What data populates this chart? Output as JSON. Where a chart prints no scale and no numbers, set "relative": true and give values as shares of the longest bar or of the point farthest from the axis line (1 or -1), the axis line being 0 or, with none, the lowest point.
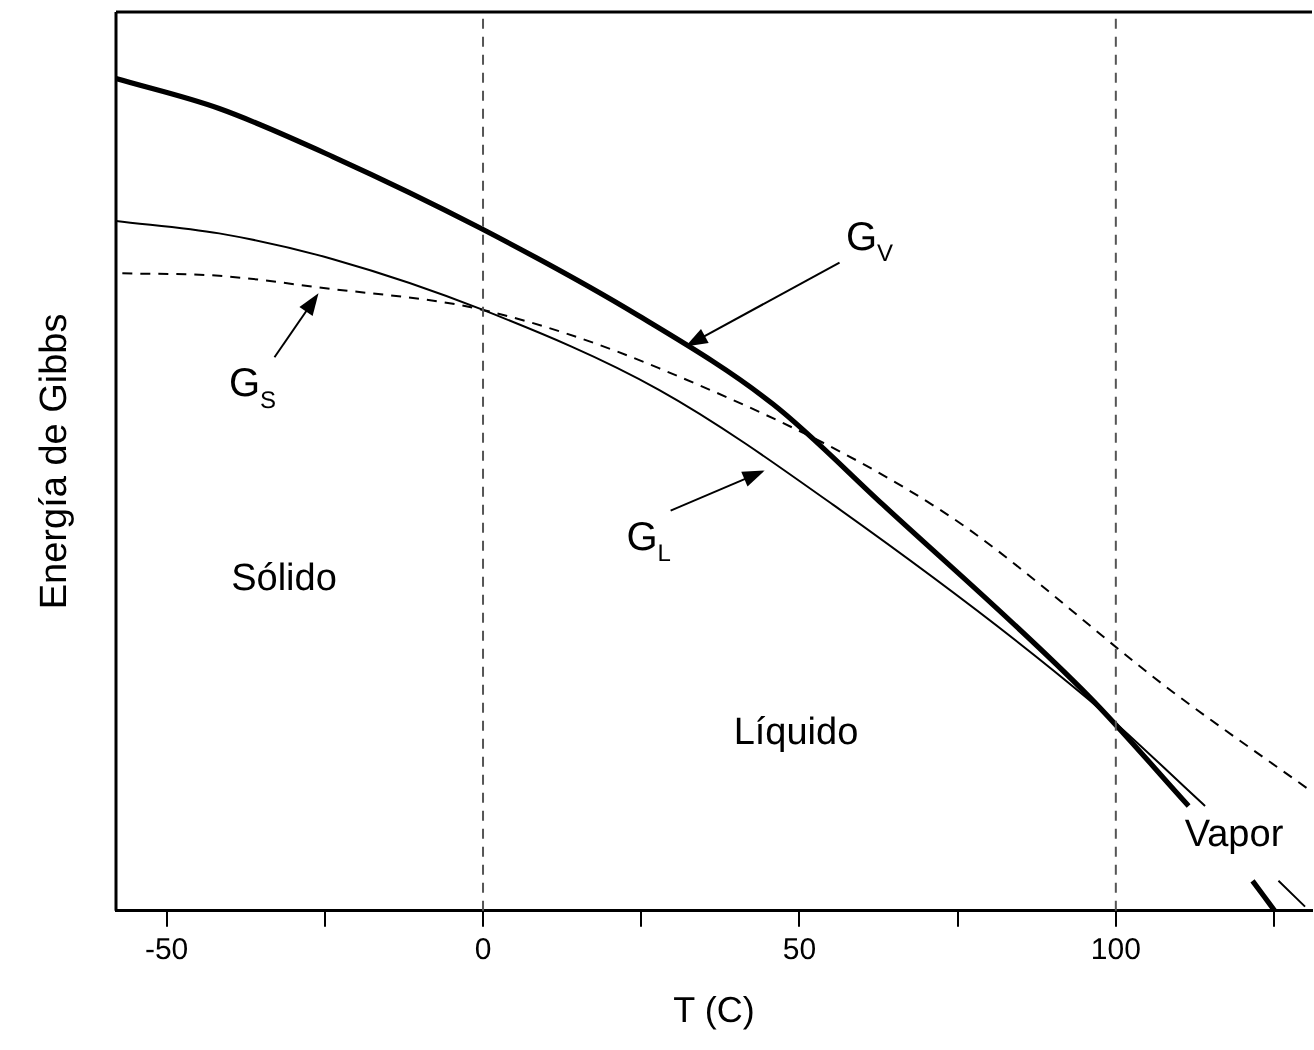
{
  "chart_data": {
    "type": "line",
    "xlabel": "T (C)",
    "ylabel": "Energía de Gibbs",
    "relative": true,
    "legend": false,
    "grid": false,
    "marker": "none",
    "xlim": [
      -58,
      131
    ],
    "xticks": [
      -50,
      {
        "value": -25,
        "label": null
      },
      0,
      {
        "value": 25,
        "label": null
      },
      50,
      {
        "value": 75,
        "label": null
      },
      100,
      {
        "value": 125,
        "label": null
      }
    ],
    "series": [
      {
        "color": "#000000",
        "line_style": "solid",
        "x": [
          -58,
          -41.7,
          -23.7,
          -0.6,
          24.6,
          45.8,
          63.2,
          95.7,
          111.5,
          null,
          121.6,
          125.1
        ],
        "values": [
          1,
          0.964,
          0.906,
          0.821,
          0.715,
          0.609,
          0.488,
          0.258,
          0.126,
          null,
          0.036,
          0
        ]
      },
      {
        "color": "#000000",
        "line_style": "solid",
        "x": [
          -58,
          -41.7,
          -23.7,
          0,
          27.8,
          55.3,
          95.7,
          114.1,
          null,
          125.7,
          129.9
        ],
        "values": [
          0.829,
          0.814,
          0.783,
          0.722,
          0.626,
          0.488,
          0.254,
          0.126,
          null,
          0.036,
          0.005
        ]
      },
      {
        "color": "#000000",
        "line_style": "dashed",
        "x": [
          -57,
          -41.7,
          -25.9,
          0,
          27.8,
          72,
          109,
          131
        ],
        "values": [
          0.766,
          0.763,
          0.749,
          0.722,
          0.652,
          0.483,
          0.263,
          0.143
        ]
      }
    ],
    "ref_lines": [
      {
        "axis": "x",
        "value": 0,
        "color": "#555555",
        "line_style": "dashed"
      },
      {
        "axis": "x",
        "value": 100,
        "color": "#555555",
        "line_style": "dashed"
      }
    ],
    "annotations": [
      {
        "text": "G$_{S}$",
        "x": -26,
        "y": 0.742
      },
      {
        "text": "G$_{V}$",
        "x": 32,
        "y": 0.678
      },
      {
        "text": "G$_{L}$",
        "x": 44.5,
        "y": 0.529
      },
      "Sólido",
      "Líquido",
      "Vapor"
    ]
  }
}
